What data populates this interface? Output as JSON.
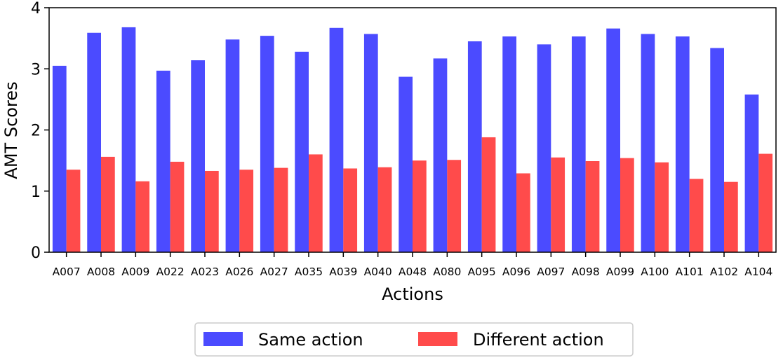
{
  "chart_data": {
    "type": "bar",
    "title": "",
    "xlabel": "Actions",
    "ylabel": "AMT Scores",
    "ylim": [
      0,
      4
    ],
    "yticks": [
      0,
      1,
      2,
      3,
      4
    ],
    "grid": false,
    "legend": "bottom-center",
    "categories": [
      "A007",
      "A008",
      "A009",
      "A022",
      "A023",
      "A026",
      "A027",
      "A035",
      "A039",
      "A040",
      "A048",
      "A080",
      "A095",
      "A096",
      "A097",
      "A098",
      "A099",
      "A100",
      "A101",
      "A102",
      "A104"
    ],
    "series": [
      {
        "name": "Same action",
        "color": "#4b4bff",
        "values": [
          3.05,
          3.59,
          3.68,
          2.97,
          3.14,
          3.48,
          3.54,
          3.28,
          3.67,
          3.57,
          2.87,
          3.17,
          3.45,
          3.53,
          3.4,
          3.53,
          3.66,
          3.57,
          3.53,
          3.34,
          2.58
        ]
      },
      {
        "name": "Different action",
        "color": "#ff4b4b",
        "values": [
          1.35,
          1.56,
          1.16,
          1.48,
          1.33,
          1.35,
          1.38,
          1.6,
          1.37,
          1.39,
          1.5,
          1.51,
          1.88,
          1.29,
          1.55,
          1.49,
          1.54,
          1.47,
          1.2,
          1.15,
          1.61
        ]
      }
    ]
  }
}
